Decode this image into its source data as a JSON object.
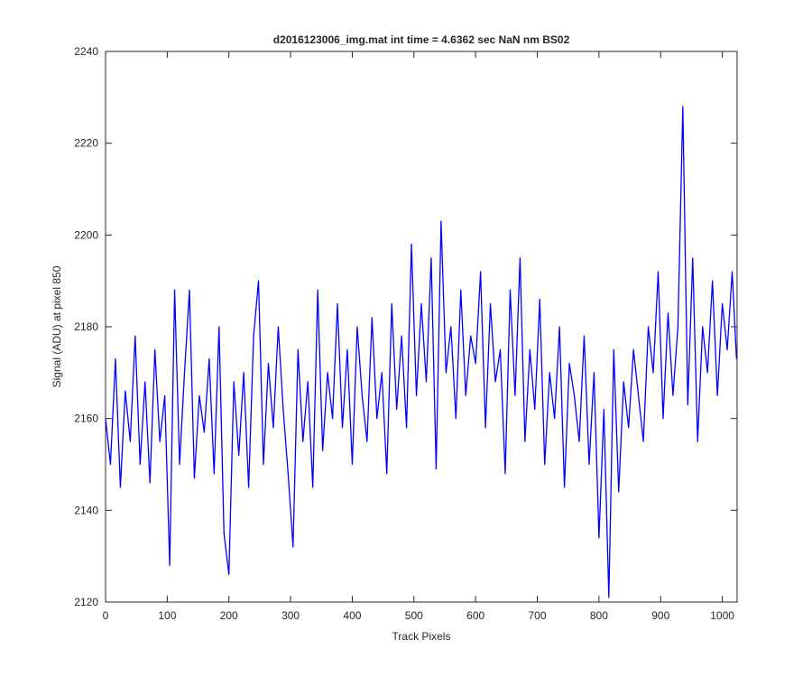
{
  "chart_data": {
    "type": "line",
    "title": "d2016123006_img.mat int time = 4.6362 sec  NaN nm BS02",
    "x_label": "Track Pixels",
    "y_label": "Signal (ADU) at pixel 850",
    "xlim": [
      0,
      1024
    ],
    "ylim": [
      2120,
      2240
    ],
    "xticks": [
      0,
      100,
      200,
      300,
      400,
      500,
      600,
      700,
      800,
      900,
      1000
    ],
    "yticks": [
      2120,
      2140,
      2160,
      2180,
      2200,
      2220,
      2240
    ],
    "grid": false,
    "x": [
      0,
      8,
      16,
      24,
      32,
      40,
      48,
      56,
      64,
      72,
      80,
      88,
      96,
      104,
      112,
      120,
      128,
      136,
      144,
      152,
      160,
      168,
      176,
      184,
      192,
      200,
      208,
      216,
      224,
      232,
      240,
      248,
      256,
      264,
      272,
      280,
      288,
      296,
      304,
      312,
      320,
      328,
      336,
      344,
      352,
      360,
      368,
      376,
      384,
      392,
      400,
      408,
      416,
      424,
      432,
      440,
      448,
      456,
      464,
      472,
      480,
      488,
      496,
      504,
      512,
      520,
      528,
      536,
      544,
      552,
      560,
      568,
      576,
      584,
      592,
      600,
      608,
      616,
      624,
      632,
      640,
      648,
      656,
      664,
      672,
      680,
      688,
      696,
      704,
      712,
      720,
      728,
      736,
      744,
      752,
      760,
      768,
      776,
      784,
      792,
      800,
      808,
      816,
      824,
      832,
      840,
      848,
      856,
      864,
      872,
      880,
      888,
      896,
      904,
      912,
      920,
      928,
      936,
      944,
      952,
      960,
      968,
      976,
      984,
      992,
      1000,
      1008,
      1016,
      1023
    ],
    "series": [
      {
        "color": "#0000ff",
        "values": [
          2160,
          2150,
          2173,
          2145,
          2166,
          2155,
          2178,
          2150,
          2168,
          2146,
          2175,
          2155,
          2165,
          2128,
          2188,
          2150,
          2170,
          2188,
          2147,
          2165,
          2157,
          2173,
          2148,
          2180,
          2135,
          2126,
          2168,
          2152,
          2170,
          2145,
          2178,
          2190,
          2150,
          2172,
          2158,
          2180,
          2162,
          2148,
          2132,
          2175,
          2155,
          2168,
          2145,
          2188,
          2153,
          2170,
          2160,
          2185,
          2158,
          2175,
          2150,
          2180,
          2165,
          2155,
          2182,
          2160,
          2170,
          2148,
          2185,
          2162,
          2178,
          2158,
          2198,
          2165,
          2185,
          2168,
          2195,
          2149,
          2203,
          2170,
          2180,
          2160,
          2188,
          2165,
          2178,
          2172,
          2192,
          2158,
          2185,
          2168,
          2175,
          2148,
          2188,
          2165,
          2195,
          2155,
          2175,
          2162,
          2186,
          2150,
          2170,
          2160,
          2180,
          2145,
          2172,
          2165,
          2155,
          2178,
          2150,
          2170,
          2134,
          2162,
          2121,
          2175,
          2144,
          2168,
          2158,
          2175,
          2165,
          2155,
          2180,
          2170,
          2192,
          2160,
          2183,
          2165,
          2180,
          2228,
          2163,
          2195,
          2155,
          2180,
          2170,
          2190,
          2165,
          2185,
          2175,
          2192,
          2173
        ]
      }
    ]
  }
}
